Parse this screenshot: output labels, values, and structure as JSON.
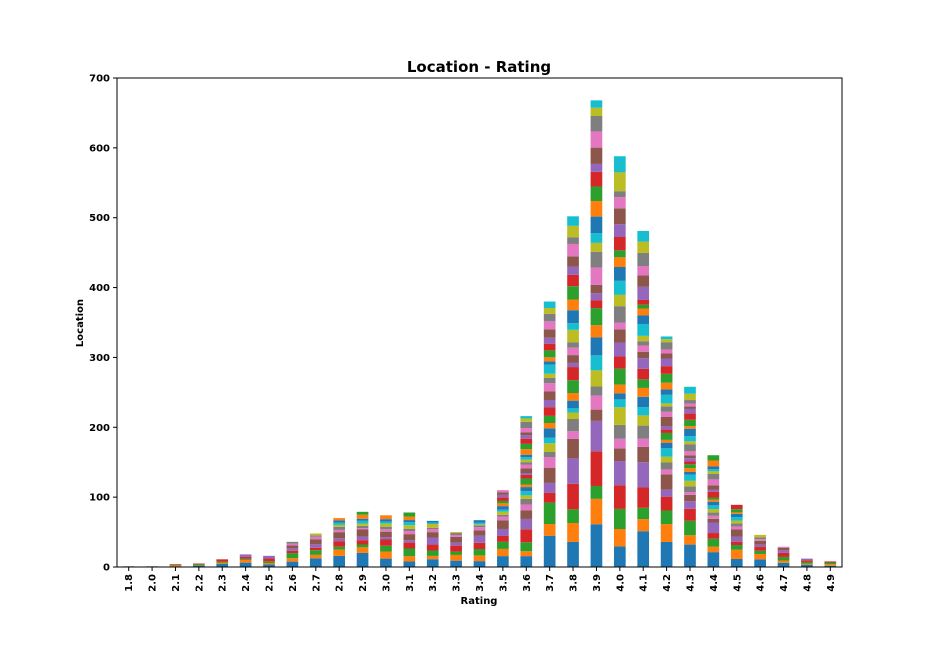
{
  "chart_data": {
    "type": "bar",
    "stacked": true,
    "title": "Location - Rating",
    "xlabel": "Rating",
    "ylabel": "Location",
    "ylim": [
      0,
      700
    ],
    "yticks": [
      0,
      100,
      200,
      300,
      400,
      500,
      600,
      700
    ],
    "grid": false,
    "legend": "none",
    "categories": [
      "1.8",
      "2.0",
      "2.1",
      "2.2",
      "2.3",
      "2.4",
      "2.5",
      "2.6",
      "2.7",
      "2.8",
      "2.9",
      "3.0",
      "3.1",
      "3.2",
      "3.3",
      "3.4",
      "3.5",
      "3.6",
      "3.7",
      "3.8",
      "3.9",
      "4.0",
      "4.1",
      "4.2",
      "4.3",
      "4.4",
      "4.5",
      "4.6",
      "4.7",
      "4.8",
      "4.9"
    ],
    "totals": [
      1,
      1,
      4,
      5,
      11,
      18,
      16,
      36,
      48,
      70,
      79,
      74,
      78,
      66,
      50,
      67,
      110,
      216,
      380,
      502,
      668,
      588,
      481,
      330,
      258,
      160,
      89,
      46,
      29,
      12,
      8
    ],
    "palette": [
      "#1f77b4",
      "#ff7f0e",
      "#2ca02c",
      "#d62728",
      "#9467bd",
      "#8c564b",
      "#e377c2",
      "#7f7f7f",
      "#bcbd22",
      "#17becf"
    ]
  }
}
